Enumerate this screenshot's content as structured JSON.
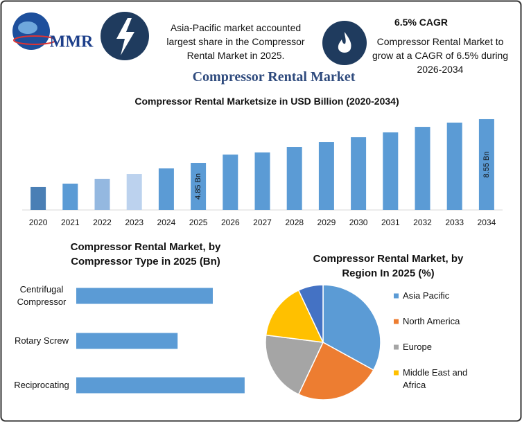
{
  "header": {
    "logo": "MMR",
    "highlight_1": "Asia-Pacific market accounted largest share in the Compressor Rental Market in 2025.",
    "highlight_2_title": "6.5% CAGR",
    "highlight_2": "Compressor Rental Market to grow at a CAGR of 6.5% during 2026-2034",
    "title": "Compressor Rental Market"
  },
  "chart_data": [
    {
      "type": "bar",
      "title": "Compressor Rental Marketsize in USD Billion (2020-2034)",
      "categories": [
        "2020",
        "2021",
        "2022",
        "2023",
        "2024",
        "2025",
        "2026",
        "2027",
        "2028",
        "2029",
        "2030",
        "2031",
        "2032",
        "2033",
        "2034"
      ],
      "values": [
        2.8,
        3.09,
        3.5,
        3.91,
        4.38,
        4.85,
        5.55,
        5.73,
        6.2,
        6.61,
        7.02,
        7.43,
        7.9,
        8.26,
        8.55
      ],
      "value_labels": [
        null,
        null,
        null,
        null,
        null,
        "4.85 Bn",
        null,
        null,
        null,
        null,
        null,
        null,
        null,
        null,
        "8.55 Bn"
      ],
      "colors": [
        "#4a7fb5",
        "#5b9bd5",
        "#94b8e0",
        "#bcd2ee",
        "#5b9bd5",
        "#5b9bd5",
        "#5b9bd5",
        "#5b9bd5",
        "#5b9bd5",
        "#5b9bd5",
        "#5b9bd5",
        "#5b9bd5",
        "#5b9bd5",
        "#5b9bd5",
        "#5b9bd5"
      ],
      "ylim": [
        0.86,
        8.96
      ]
    },
    {
      "type": "barh",
      "title": "Compressor Rental Market, by Compressor Type in 2025 (Bn)",
      "categories": [
        "Centrifugal Compressor",
        "Rotary Screw",
        "Reciprocating"
      ],
      "values": [
        1.63,
        1.21,
        2.01
      ],
      "color": "#5b9bd5",
      "xlim": [
        0,
        2.4
      ]
    },
    {
      "type": "pie",
      "title": "Compressor Rental Market, by Region In 2025 (%)",
      "categories": [
        "Asia Pacific",
        "North America",
        "Europe",
        "Middle East and Africa",
        null
      ],
      "values": [
        33,
        24,
        20,
        16,
        7
      ],
      "colors": [
        "#5b9bd5",
        "#ed7d31",
        "#a5a5a5",
        "#ffc000",
        "#4472c4"
      ]
    }
  ]
}
